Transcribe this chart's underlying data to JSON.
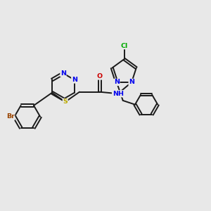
{
  "background_color": "#e8e8e8",
  "bond_color": "#1a1a1a",
  "atom_colors": {
    "N": "#0000ee",
    "O": "#cc0000",
    "S": "#bbaa00",
    "Br": "#994400",
    "Cl": "#00aa00",
    "C": "#1a1a1a"
  },
  "figsize": [
    3.0,
    3.0
  ],
  "dpi": 100,
  "xlim": [
    -5.8,
    3.6
  ],
  "ylim": [
    -2.8,
    3.2
  ]
}
